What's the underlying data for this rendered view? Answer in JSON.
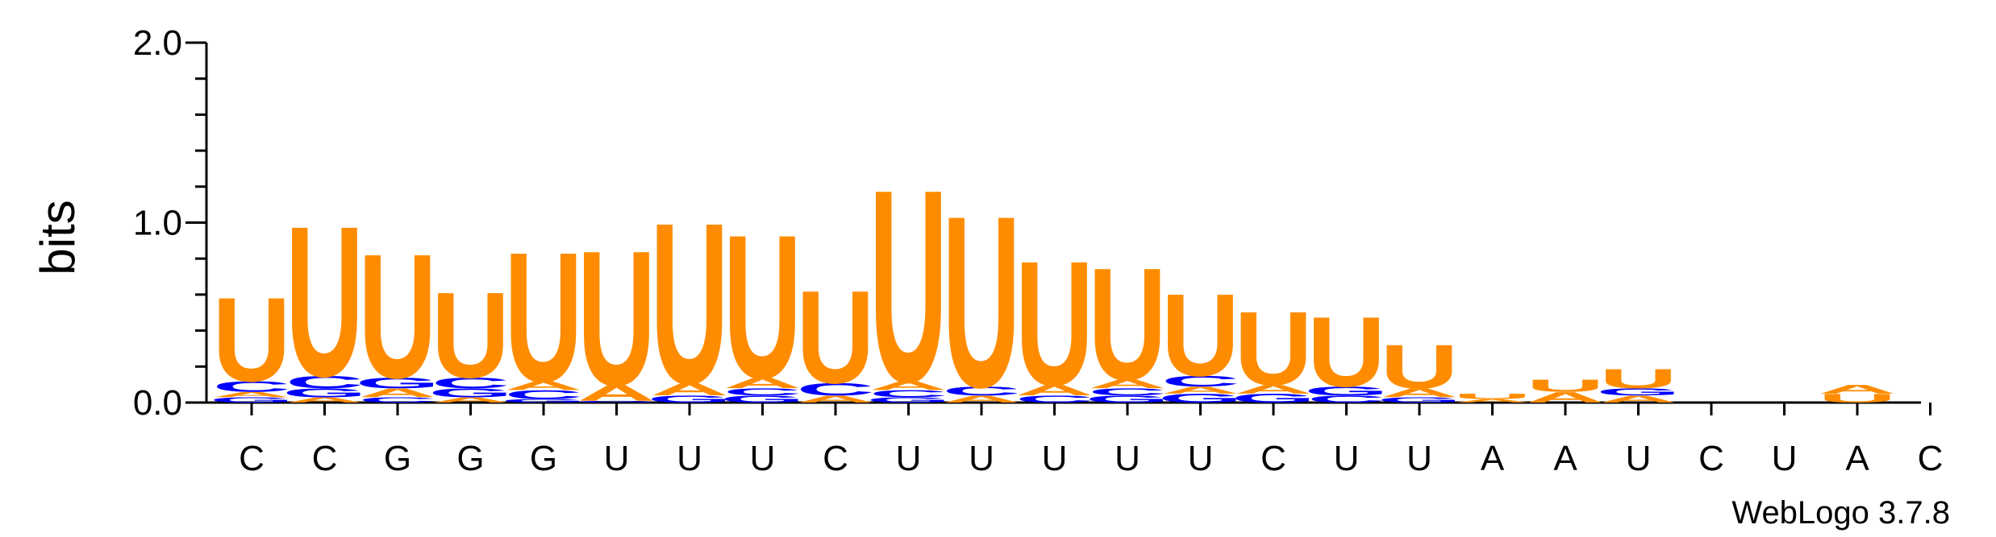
{
  "chart_data": {
    "type": "sequence-logo",
    "ylabel": "bits",
    "ylim": [
      0,
      2.0
    ],
    "y_ticks": [
      {
        "value": 0.0,
        "label": "0.0"
      },
      {
        "value": 1.0,
        "label": "1.0"
      },
      {
        "value": 2.0,
        "label": "2.0"
      }
    ],
    "colors": {
      "U": "#ff8c00",
      "A": "#ff8c00",
      "C": "#0000ff",
      "G": "#0000ff"
    },
    "credit": "WebLogo 3.7.8",
    "positions": [
      {
        "label": "C",
        "stack": [
          [
            "G",
            0.03
          ],
          [
            "A",
            0.03
          ],
          [
            "C",
            0.06
          ],
          [
            "U",
            0.48
          ]
        ]
      },
      {
        "label": "C",
        "stack": [
          [
            "A",
            0.03
          ],
          [
            "G",
            0.05
          ],
          [
            "C",
            0.07
          ],
          [
            "U",
            0.86
          ]
        ]
      },
      {
        "label": "G",
        "stack": [
          [
            "C",
            0.03
          ],
          [
            "A",
            0.05
          ],
          [
            "G",
            0.06
          ],
          [
            "U",
            0.71
          ]
        ]
      },
      {
        "label": "G",
        "stack": [
          [
            "A",
            0.03
          ],
          [
            "G",
            0.05
          ],
          [
            "C",
            0.06
          ],
          [
            "U",
            0.49
          ]
        ]
      },
      {
        "label": "G",
        "stack": [
          [
            "G",
            0.02
          ],
          [
            "C",
            0.05
          ],
          [
            "A",
            0.05
          ],
          [
            "U",
            0.74
          ]
        ]
      },
      {
        "label": "U",
        "stack": [
          [
            "G",
            0.01
          ],
          [
            "A",
            0.09
          ],
          [
            "U",
            0.77
          ]
        ]
      },
      {
        "label": "U",
        "stack": [
          [
            "G",
            0.04
          ],
          [
            "A",
            0.07
          ],
          [
            "U",
            0.92
          ]
        ]
      },
      {
        "label": "U",
        "stack": [
          [
            "G",
            0.04
          ],
          [
            "C",
            0.04
          ],
          [
            "A",
            0.06
          ],
          [
            "U",
            0.82
          ]
        ]
      },
      {
        "label": "C",
        "stack": [
          [
            "A",
            0.04
          ],
          [
            "C",
            0.07
          ],
          [
            "U",
            0.53
          ]
        ]
      },
      {
        "label": "U",
        "stack": [
          [
            "G",
            0.03
          ],
          [
            "C",
            0.04
          ],
          [
            "A",
            0.05
          ],
          [
            "U",
            1.1
          ]
        ]
      },
      {
        "label": "U",
        "stack": [
          [
            "A",
            0.04
          ],
          [
            "C",
            0.05
          ],
          [
            "U",
            0.98
          ]
        ]
      },
      {
        "label": "U",
        "stack": [
          [
            "C",
            0.04
          ],
          [
            "A",
            0.06
          ],
          [
            "U",
            0.71
          ]
        ]
      },
      {
        "label": "U",
        "stack": [
          [
            "G",
            0.04
          ],
          [
            "C",
            0.04
          ],
          [
            "A",
            0.05
          ],
          [
            "U",
            0.64
          ]
        ]
      },
      {
        "label": "U",
        "stack": [
          [
            "G",
            0.05
          ],
          [
            "A",
            0.04
          ],
          [
            "C",
            0.06
          ],
          [
            "U",
            0.47
          ]
        ]
      },
      {
        "label": "C",
        "stack": [
          [
            "G",
            0.05
          ],
          [
            "A",
            0.05
          ],
          [
            "U",
            0.42
          ]
        ]
      },
      {
        "label": "U",
        "stack": [
          [
            "C",
            0.04
          ],
          [
            "G",
            0.05
          ],
          [
            "U",
            0.4
          ]
        ]
      },
      {
        "label": "U",
        "stack": [
          [
            "G",
            0.03
          ],
          [
            "A",
            0.05
          ],
          [
            "U",
            0.25
          ]
        ]
      },
      {
        "label": "A",
        "stack": [
          [
            "A",
            0.02
          ],
          [
            "U",
            0.03
          ]
        ]
      },
      {
        "label": "A",
        "stack": [
          [
            "A",
            0.06
          ],
          [
            "U",
            0.07
          ]
        ]
      },
      {
        "label": "U",
        "stack": [
          [
            "A",
            0.04
          ],
          [
            "G",
            0.04
          ],
          [
            "U",
            0.11
          ]
        ]
      },
      {
        "label": "C",
        "stack": []
      },
      {
        "label": "U",
        "stack": []
      },
      {
        "label": "A",
        "stack": [
          [
            "U",
            0.05
          ],
          [
            "A",
            0.05
          ]
        ]
      },
      {
        "label": "C",
        "stack": []
      }
    ]
  }
}
